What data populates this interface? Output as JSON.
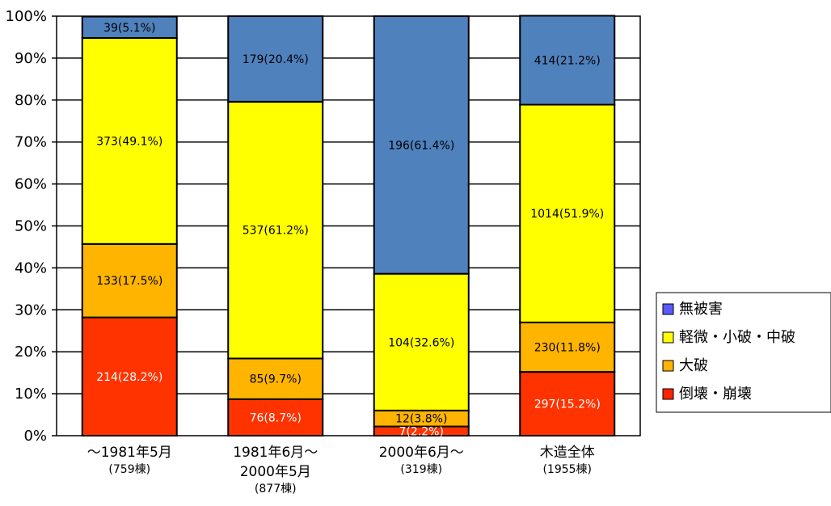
{
  "chart_data": {
    "type": "bar",
    "stacked": true,
    "percent": true,
    "ylim": [
      0,
      100
    ],
    "y_ticks": [
      "0%",
      "10%",
      "20%",
      "30%",
      "40%",
      "50%",
      "60%",
      "70%",
      "80%",
      "90%",
      "100%"
    ],
    "grid": true,
    "legend_position": "right",
    "categories": [
      {
        "label_lines": [
          "～1981年5月"
        ],
        "sub": "(759棟)"
      },
      {
        "label_lines": [
          "1981年6月～",
          "2000年5月"
        ],
        "sub": "(877棟)"
      },
      {
        "label_lines": [
          "2000年6月～"
        ],
        "sub": "(319棟)"
      },
      {
        "label_lines": [
          "木造全体"
        ],
        "sub": "(1955棟)"
      }
    ],
    "series": [
      {
        "name": "倒壊・崩壊",
        "color": "#ff3300",
        "label_color": "#ffffff",
        "values": [
          28.2,
          8.7,
          2.2,
          15.2
        ],
        "labels": [
          "214(28.2%)",
          "76(8.7%)",
          "7(2.2%)",
          "297(15.2%)"
        ]
      },
      {
        "name": "大破",
        "color": "#ffb400",
        "label_color": "#000000",
        "values": [
          17.5,
          9.7,
          3.8,
          11.8
        ],
        "labels": [
          "133(17.5%)",
          "85(9.7%)",
          "12(3.8%)",
          "230(11.8%)"
        ]
      },
      {
        "name": "軽微・小破・中破",
        "color": "#ffff00",
        "label_color": "#000000",
        "values": [
          49.1,
          61.2,
          32.6,
          51.9
        ],
        "labels": [
          "373(49.1%)",
          "537(61.2%)",
          "104(32.6%)",
          "1014(51.9%)"
        ]
      },
      {
        "name": "無被害",
        "color": "#4f81bd",
        "label_color": "#000000",
        "values": [
          5.1,
          20.4,
          61.4,
          21.2
        ],
        "labels": [
          "39(5.1%)",
          "179(20.4%)",
          "196(61.4%)",
          "414(21.2%)"
        ]
      }
    ],
    "legend": [
      {
        "name": "無被害",
        "color": "#5a5aff"
      },
      {
        "name": "軽微・小破・中破",
        "color": "#ffff00"
      },
      {
        "name": "大破",
        "color": "#ffb400"
      },
      {
        "name": "倒壊・崩壊",
        "color": "#ff2200"
      }
    ]
  }
}
